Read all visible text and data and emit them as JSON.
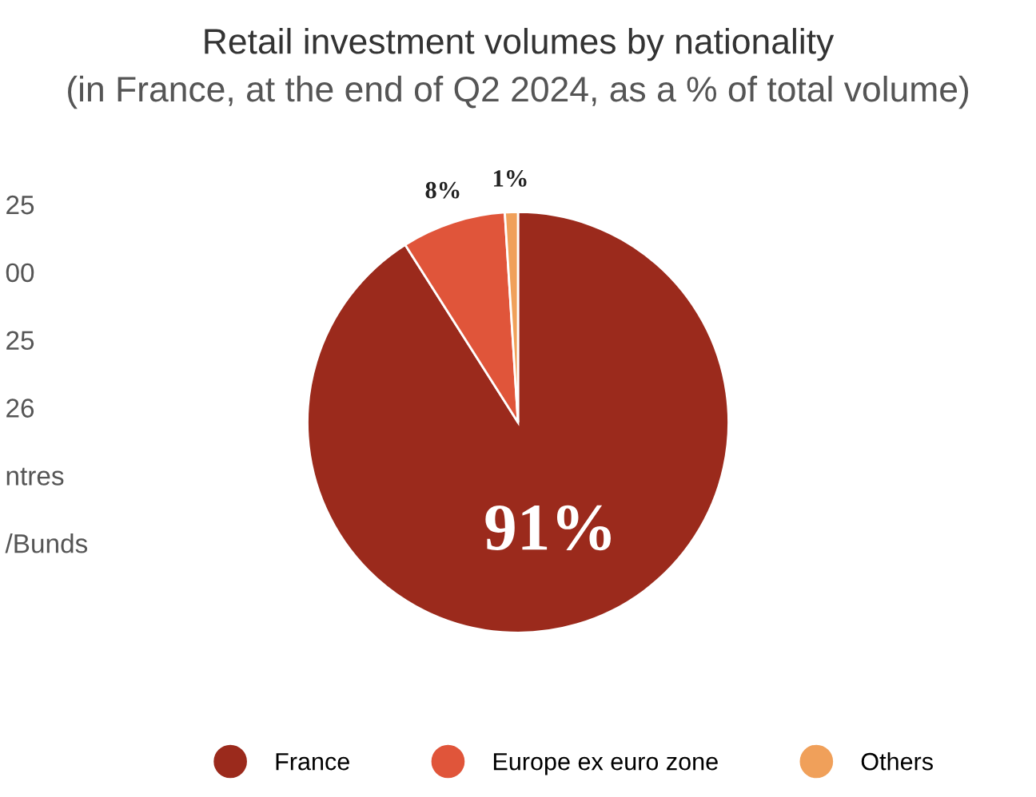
{
  "chart_data": {
    "type": "pie",
    "title": "Retail investment volumes by nationality",
    "subtitle": "(in France, at the end of Q2 2024, as a % of total volume)",
    "categories": [
      "France",
      "Europe ex euro zone",
      "Others"
    ],
    "values": [
      91,
      8,
      1
    ],
    "colors": [
      "#9b2a1c",
      "#e0553a",
      "#f0a05a"
    ],
    "value_labels": [
      "91%",
      "8%",
      "1%"
    ],
    "legend": "bottom",
    "annotations": [
      "25",
      "00",
      "25",
      "26",
      "ntres",
      "/Bunds"
    ]
  }
}
